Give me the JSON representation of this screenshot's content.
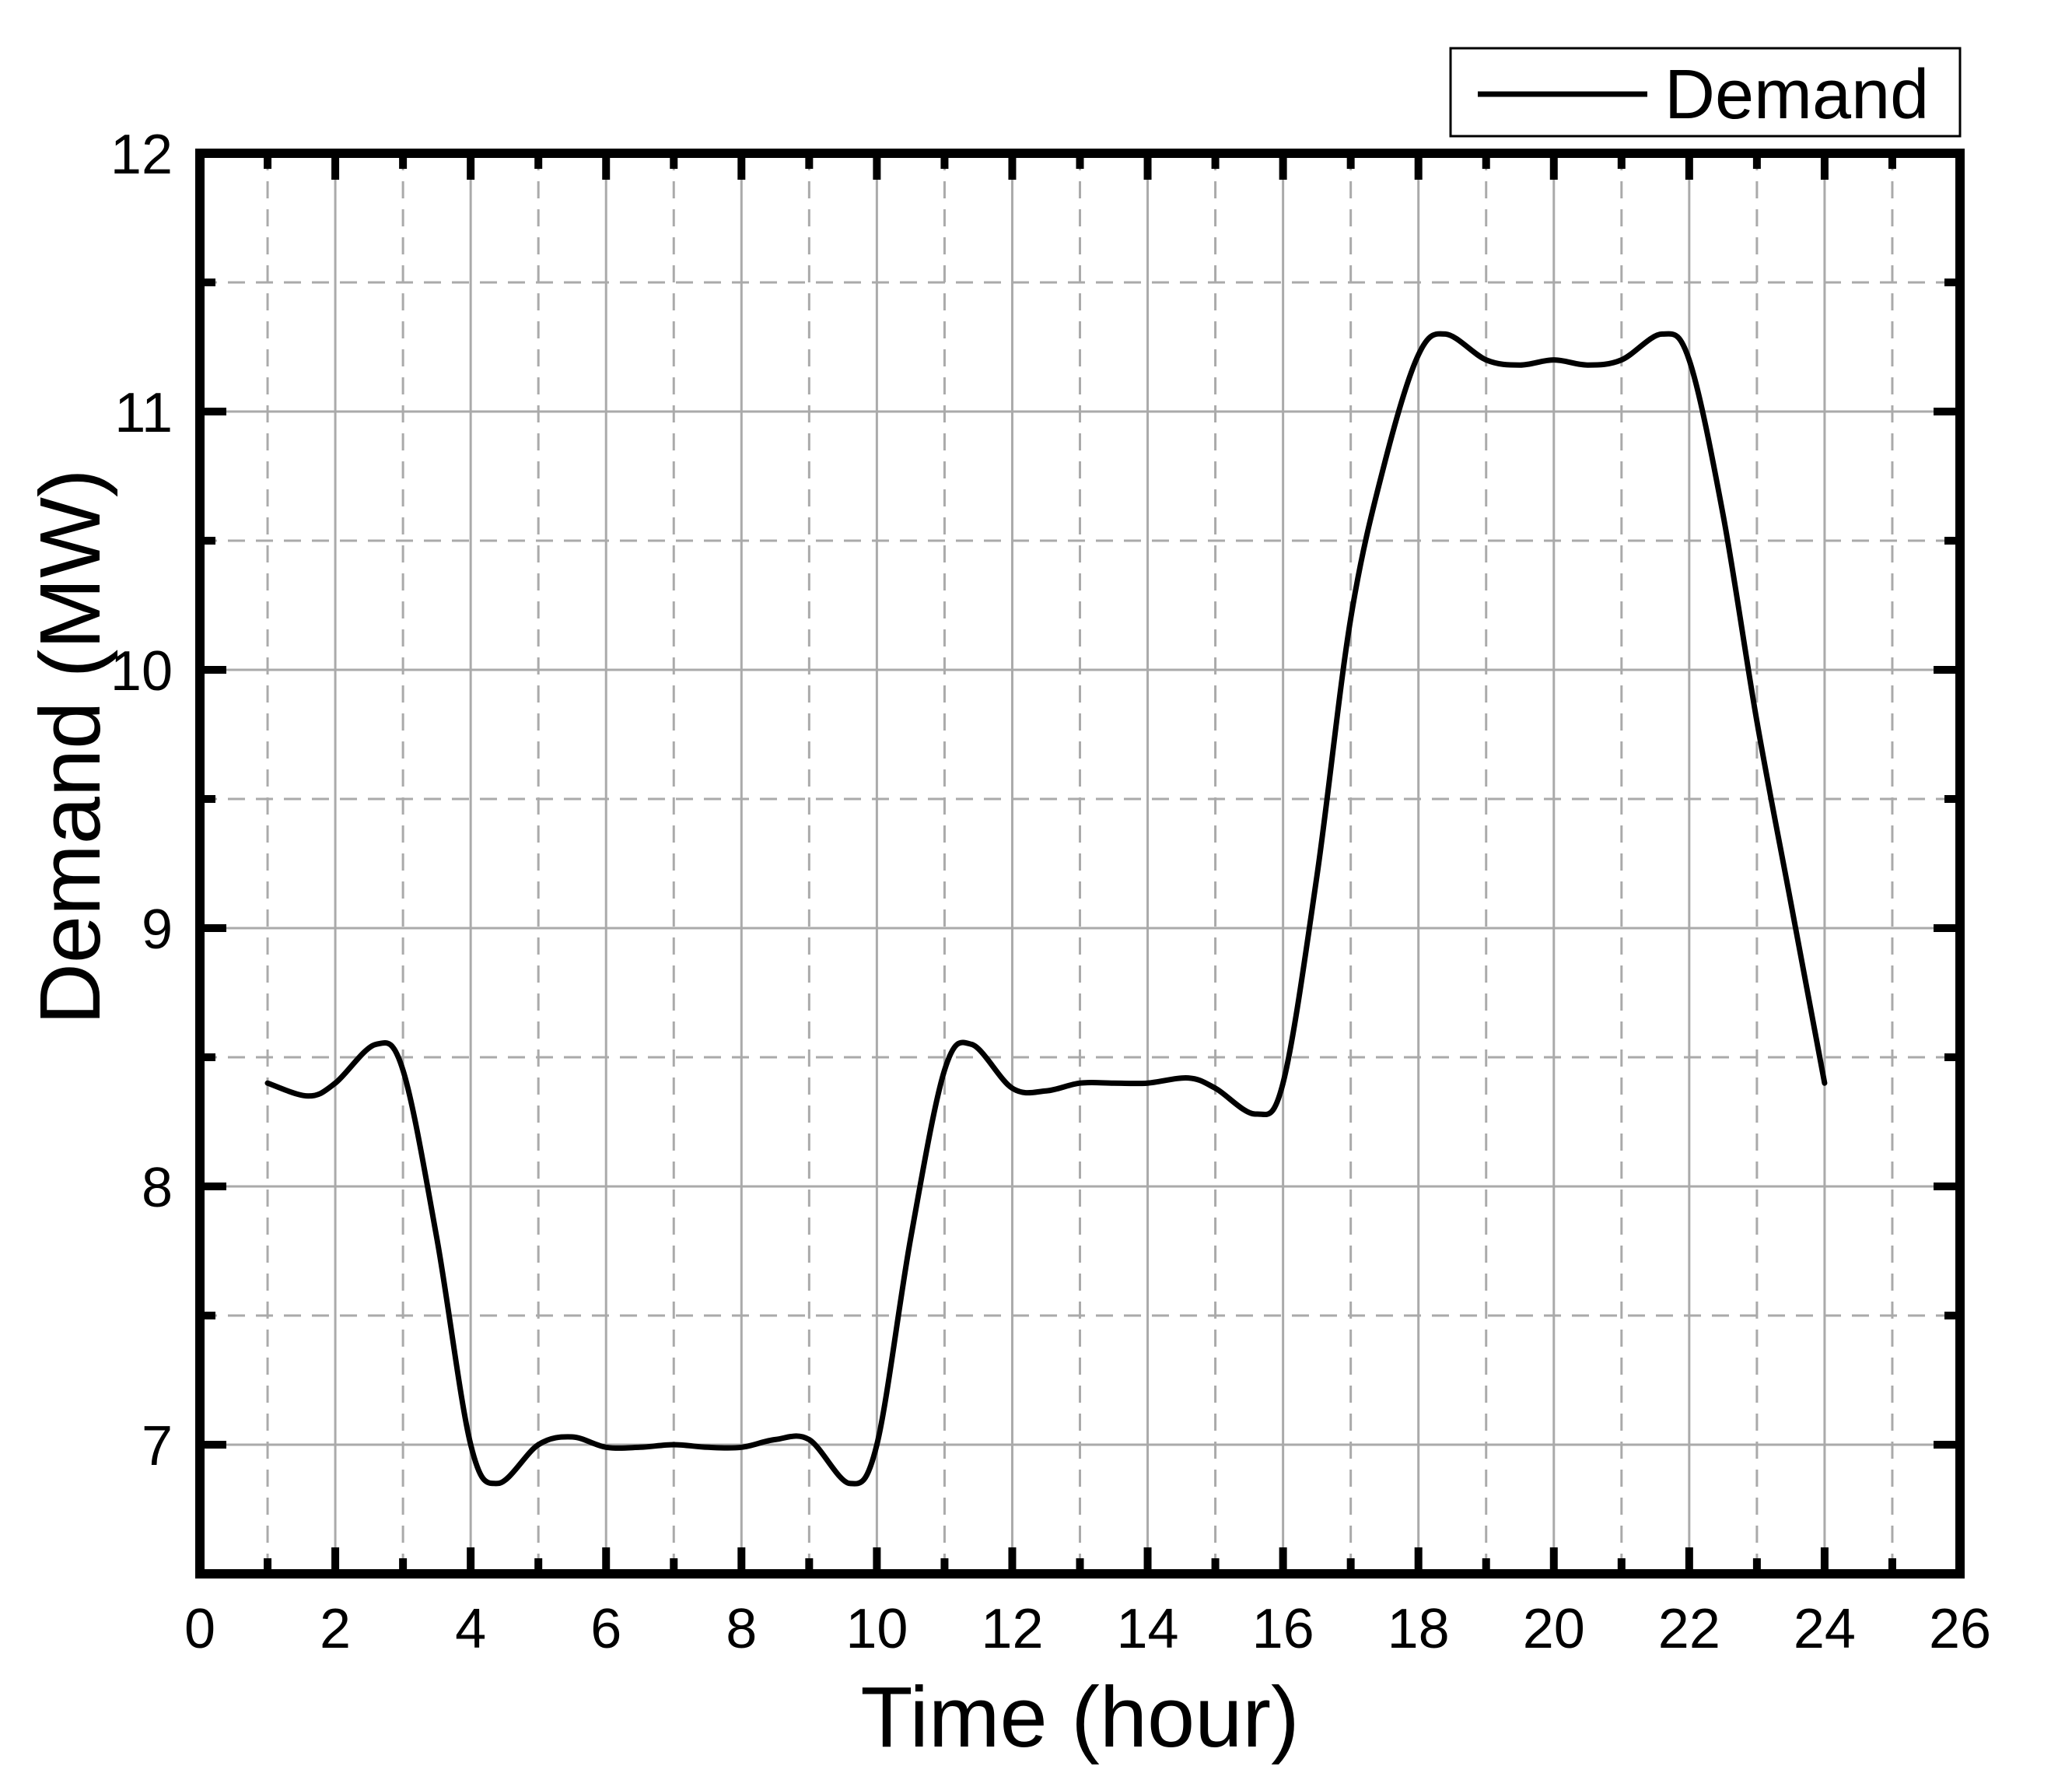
{
  "chart_data": {
    "type": "line",
    "title": "",
    "xlabel": "Time (hour)",
    "ylabel": "Demand (MW)",
    "xlim": [
      0,
      26
    ],
    "ylim": [
      6.5,
      12
    ],
    "x_ticks": [
      0,
      2,
      4,
      6,
      8,
      10,
      12,
      14,
      16,
      18,
      20,
      22,
      24,
      26
    ],
    "y_ticks": [
      7,
      8,
      9,
      10,
      11,
      12
    ],
    "grid": true,
    "legend_position": "top-right",
    "colors": {
      "line": "#000000",
      "grid": "#aaaaaa",
      "frame": "#000000"
    },
    "series": [
      {
        "name": "Demand",
        "x": [
          1,
          1.6,
          2,
          2.6,
          3,
          3.5,
          4,
          4.4,
          5,
          5.5,
          6,
          6.5,
          7,
          7.5,
          8,
          8.5,
          9,
          9.6,
          10,
          10.5,
          11,
          11.4,
          12,
          12.5,
          13,
          13.5,
          14,
          14.6,
          15,
          15.6,
          16,
          16.5,
          17,
          17.5,
          18,
          18.4,
          19,
          19.5,
          20,
          20.5,
          21,
          21.6,
          22,
          22.5,
          23,
          23.5,
          24
        ],
        "y": [
          8.4,
          8.35,
          8.4,
          8.55,
          8.45,
          7.8,
          7.0,
          6.85,
          7.0,
          7.03,
          6.99,
          6.99,
          7.0,
          6.99,
          6.99,
          7.02,
          7.02,
          6.85,
          7.0,
          7.8,
          8.45,
          8.55,
          8.38,
          8.37,
          8.4,
          8.4,
          8.4,
          8.42,
          8.38,
          8.28,
          8.4,
          9.2,
          10.2,
          10.8,
          11.22,
          11.3,
          11.2,
          11.18,
          11.2,
          11.18,
          11.2,
          11.3,
          11.2,
          10.6,
          9.8,
          9.1,
          8.4
        ]
      }
    ]
  }
}
